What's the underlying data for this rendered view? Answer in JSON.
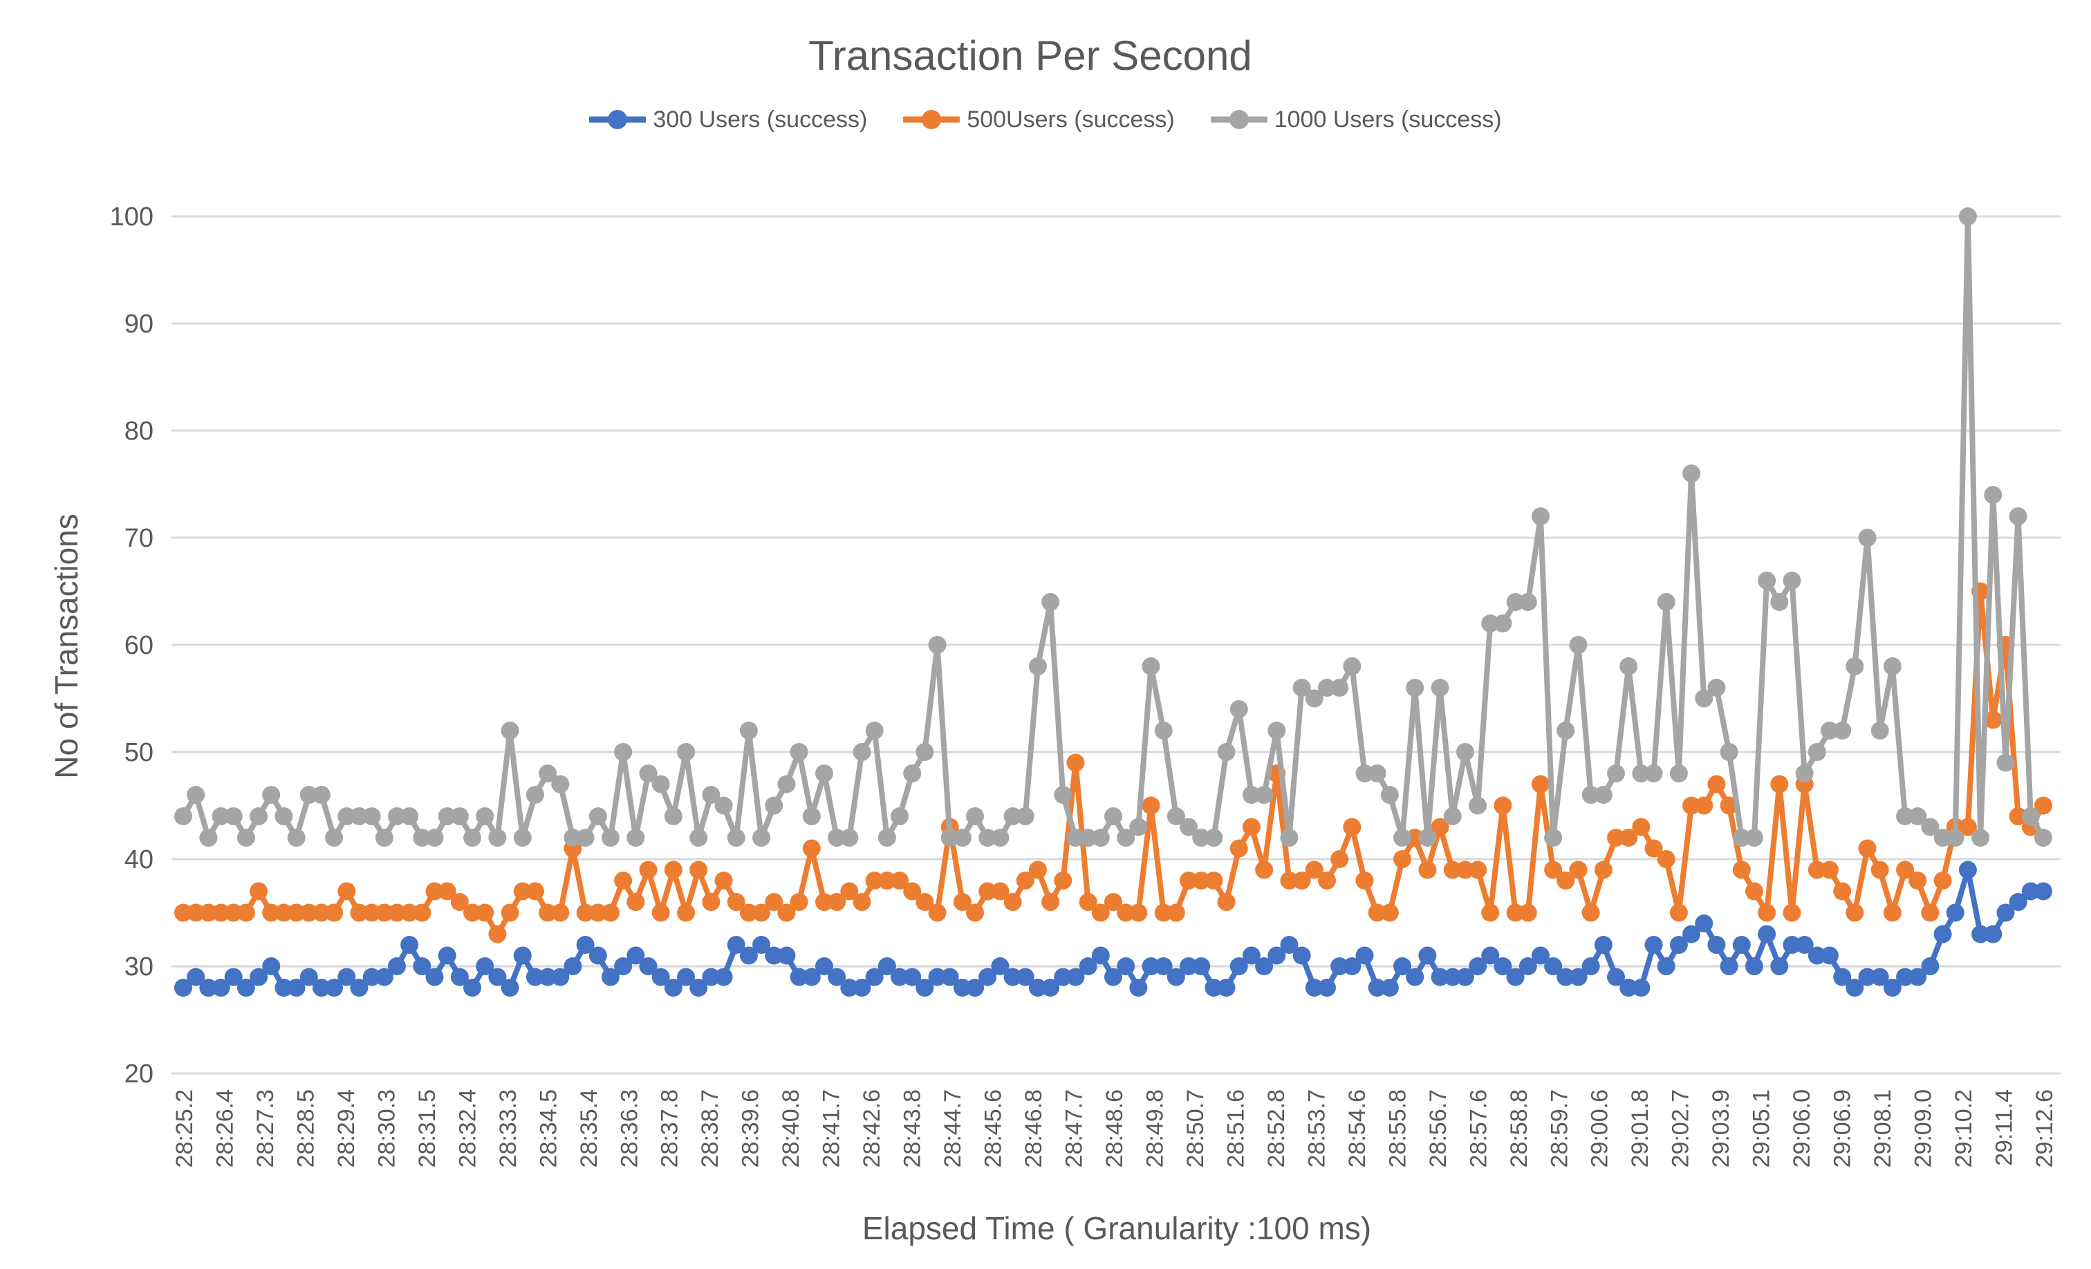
{
  "chart_data": {
    "type": "line",
    "title": "Transaction Per Second",
    "x_axis_title": "Elapsed Time ( Granularity :100 ms)",
    "y_axis_title": "No of Transactions",
    "ylim": [
      20,
      100
    ],
    "y_tick_step": 10,
    "y_tick_labels": [
      "20",
      "30",
      "40",
      "50",
      "60",
      "70",
      "80",
      "90",
      "100"
    ],
    "grid": "horizontal",
    "legend_position": "top",
    "colors": {
      "series_300": "#4472C4",
      "series_500": "#ED7D31",
      "series_1000": "#A5A5A5",
      "grid_color": "#D9D9D9",
      "text_color": "#595959",
      "background": "#FFFFFF"
    },
    "x_labels": [
      "28:25.2",
      "28:26.4",
      "28:27.3",
      "28:28.5",
      "28:29.4",
      "28:30.3",
      "28:31.5",
      "28:32.4",
      "28:33.3",
      "28:34.5",
      "28:35.4",
      "28:36.3",
      "28:37.8",
      "28:38.7",
      "28:39.6",
      "28:40.8",
      "28:41.7",
      "28:42.6",
      "28:43.8",
      "28:44.7",
      "28:45.6",
      "28:46.8",
      "28:47.7",
      "28:48.6",
      "28:49.8",
      "28:50.7",
      "28:51.6",
      "28:52.8",
      "28:53.7",
      "28:54.6",
      "28:55.8",
      "28:56.7",
      "28:57.6",
      "28:58.8",
      "28:59.7",
      "29:00.6",
      "29:01.8",
      "29:02.7",
      "29:03.9",
      "29:05.1",
      "29:06.0",
      "29:06.9",
      "29:08.1",
      "29:09.0",
      "29:10.2",
      "29:11.4",
      "29:12.6"
    ],
    "series": [
      {
        "name": "300 Users (success)",
        "color": "#4472C4",
        "values": [
          28,
          29,
          28,
          28,
          29,
          28,
          29,
          30,
          28,
          28,
          29,
          28,
          28,
          29,
          28,
          29,
          29,
          30,
          32,
          30,
          29,
          31,
          29,
          28,
          30,
          29,
          28,
          31,
          29,
          29,
          29,
          30,
          32,
          31,
          29,
          30,
          31,
          30,
          29,
          28,
          29,
          28,
          29,
          29,
          32,
          31,
          32,
          31,
          31,
          29,
          29,
          30,
          29,
          28,
          28,
          29,
          30,
          29,
          29,
          28,
          29,
          29,
          28,
          28,
          29,
          30,
          29,
          29,
          28,
          28,
          29,
          29,
          30,
          31,
          29,
          30,
          28,
          30,
          30,
          29,
          30,
          30,
          28,
          28,
          30,
          31,
          30,
          31,
          32,
          31,
          28,
          28,
          30,
          30,
          31,
          28,
          28,
          30,
          29,
          31,
          29,
          29,
          29,
          30,
          31,
          30,
          29,
          30,
          31,
          30,
          29,
          29,
          30,
          32,
          29,
          28,
          28,
          32,
          30,
          32,
          33,
          34,
          32,
          30,
          32,
          30,
          33,
          30,
          32,
          32,
          31,
          31,
          29,
          28,
          29,
          29,
          28,
          29,
          29,
          30,
          33,
          35,
          39,
          33,
          33,
          35,
          36,
          37,
          37
        ]
      },
      {
        "name": "500Users (success)",
        "color": "#ED7D31",
        "values": [
          35,
          35,
          35,
          35,
          35,
          35,
          37,
          35,
          35,
          35,
          35,
          35,
          35,
          37,
          35,
          35,
          35,
          35,
          35,
          35,
          37,
          37,
          36,
          35,
          35,
          33,
          35,
          37,
          37,
          35,
          35,
          41,
          35,
          35,
          35,
          38,
          36,
          39,
          35,
          39,
          35,
          39,
          36,
          38,
          36,
          35,
          35,
          36,
          35,
          36,
          41,
          36,
          36,
          37,
          36,
          38,
          38,
          38,
          37,
          36,
          35,
          43,
          36,
          35,
          37,
          37,
          36,
          38,
          39,
          36,
          38,
          49,
          36,
          35,
          36,
          35,
          35,
          45,
          35,
          35,
          38,
          38,
          38,
          36,
          41,
          43,
          39,
          48,
          38,
          38,
          39,
          38,
          40,
          43,
          38,
          35,
          35,
          40,
          42,
          39,
          43,
          39,
          39,
          39,
          35,
          45,
          35,
          35,
          47,
          39,
          38,
          39,
          35,
          39,
          42,
          42,
          43,
          41,
          40,
          35,
          45,
          45,
          47,
          45,
          39,
          37,
          35,
          47,
          35,
          47,
          39,
          39,
          37,
          35,
          41,
          39,
          35,
          39,
          38,
          35,
          38,
          43,
          43,
          65,
          53,
          60,
          44,
          43,
          45
        ]
      },
      {
        "name": "1000 Users (success)",
        "color": "#A5A5A5",
        "values": [
          44,
          46,
          42,
          44,
          44,
          42,
          44,
          46,
          44,
          42,
          46,
          46,
          42,
          44,
          44,
          44,
          42,
          44,
          44,
          42,
          42,
          44,
          44,
          42,
          44,
          42,
          52,
          42,
          46,
          48,
          47,
          42,
          42,
          44,
          42,
          50,
          42,
          48,
          47,
          44,
          50,
          42,
          46,
          45,
          42,
          52,
          42,
          45,
          47,
          50,
          44,
          48,
          42,
          42,
          50,
          52,
          42,
          44,
          48,
          50,
          60,
          42,
          42,
          44,
          42,
          42,
          44,
          44,
          58,
          64,
          46,
          42,
          42,
          42,
          44,
          42,
          43,
          58,
          52,
          44,
          43,
          42,
          42,
          50,
          54,
          46,
          46,
          52,
          42,
          56,
          55,
          56,
          56,
          58,
          48,
          48,
          46,
          42,
          56,
          42,
          56,
          44,
          50,
          45,
          62,
          62,
          64,
          64,
          72,
          42,
          52,
          60,
          46,
          46,
          48,
          58,
          48,
          48,
          64,
          48,
          76,
          55,
          56,
          50,
          42,
          42,
          66,
          64,
          66,
          48,
          50,
          52,
          52,
          58,
          70,
          52,
          58,
          44,
          44,
          43,
          42,
          42,
          100,
          42,
          74,
          49,
          72,
          44,
          42
        ]
      }
    ]
  }
}
